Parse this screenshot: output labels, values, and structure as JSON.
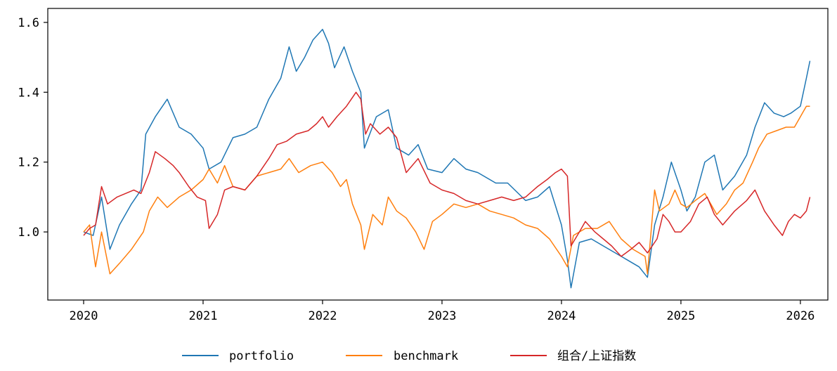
{
  "chart_data": {
    "type": "line",
    "title": "",
    "xlabel": "",
    "ylabel": "",
    "xlim": [
      2019.7,
      2026.23
    ],
    "ylim": [
      0.805,
      1.64
    ],
    "x_ticks": [
      2020,
      2021,
      2022,
      2023,
      2024,
      2025,
      2026
    ],
    "x_tick_labels": [
      "2020",
      "2021",
      "2022",
      "2023",
      "2024",
      "2025",
      "2026"
    ],
    "y_ticks": [
      1.0,
      1.2,
      1.4,
      1.6
    ],
    "y_tick_labels": [
      "1.0",
      "1.2",
      "1.4",
      "1.6"
    ],
    "grid": false,
    "legend_position": "bottom-center",
    "series": [
      {
        "name": "portfolio",
        "color": "#1f77b4",
        "points": [
          [
            2020.0,
            1.0
          ],
          [
            2020.08,
            0.99
          ],
          [
            2020.15,
            1.1
          ],
          [
            2020.22,
            0.95
          ],
          [
            2020.3,
            1.02
          ],
          [
            2020.4,
            1.08
          ],
          [
            2020.48,
            1.12
          ],
          [
            2020.52,
            1.28
          ],
          [
            2020.6,
            1.33
          ],
          [
            2020.7,
            1.38
          ],
          [
            2020.8,
            1.3
          ],
          [
            2020.9,
            1.28
          ],
          [
            2021.0,
            1.24
          ],
          [
            2021.05,
            1.18
          ],
          [
            2021.15,
            1.2
          ],
          [
            2021.25,
            1.27
          ],
          [
            2021.35,
            1.28
          ],
          [
            2021.45,
            1.3
          ],
          [
            2021.55,
            1.38
          ],
          [
            2021.65,
            1.44
          ],
          [
            2021.72,
            1.53
          ],
          [
            2021.78,
            1.46
          ],
          [
            2021.85,
            1.5
          ],
          [
            2021.92,
            1.55
          ],
          [
            2022.0,
            1.58
          ],
          [
            2022.05,
            1.54
          ],
          [
            2022.1,
            1.47
          ],
          [
            2022.18,
            1.53
          ],
          [
            2022.25,
            1.46
          ],
          [
            2022.32,
            1.4
          ],
          [
            2022.35,
            1.24
          ],
          [
            2022.45,
            1.33
          ],
          [
            2022.55,
            1.35
          ],
          [
            2022.62,
            1.24
          ],
          [
            2022.72,
            1.22
          ],
          [
            2022.8,
            1.25
          ],
          [
            2022.88,
            1.18
          ],
          [
            2023.0,
            1.17
          ],
          [
            2023.1,
            1.21
          ],
          [
            2023.2,
            1.18
          ],
          [
            2023.3,
            1.17
          ],
          [
            2023.45,
            1.14
          ],
          [
            2023.55,
            1.14
          ],
          [
            2023.7,
            1.09
          ],
          [
            2023.8,
            1.1
          ],
          [
            2023.9,
            1.13
          ],
          [
            2024.0,
            1.02
          ],
          [
            2024.05,
            0.92
          ],
          [
            2024.08,
            0.84
          ],
          [
            2024.15,
            0.97
          ],
          [
            2024.25,
            0.98
          ],
          [
            2024.35,
            0.96
          ],
          [
            2024.45,
            0.94
          ],
          [
            2024.55,
            0.92
          ],
          [
            2024.65,
            0.9
          ],
          [
            2024.72,
            0.87
          ],
          [
            2024.78,
            1.02
          ],
          [
            2024.85,
            1.1
          ],
          [
            2024.92,
            1.2
          ],
          [
            2025.0,
            1.12
          ],
          [
            2025.05,
            1.06
          ],
          [
            2025.12,
            1.1
          ],
          [
            2025.2,
            1.2
          ],
          [
            2025.28,
            1.22
          ],
          [
            2025.35,
            1.12
          ],
          [
            2025.45,
            1.16
          ],
          [
            2025.55,
            1.22
          ],
          [
            2025.62,
            1.3
          ],
          [
            2025.7,
            1.37
          ],
          [
            2025.78,
            1.34
          ],
          [
            2025.86,
            1.33
          ],
          [
            2025.92,
            1.34
          ],
          [
            2026.0,
            1.36
          ],
          [
            2026.05,
            1.44
          ],
          [
            2026.08,
            1.49
          ]
        ]
      },
      {
        "name": "benchmark",
        "color": "#ff7f0e",
        "points": [
          [
            2020.0,
            1.0
          ],
          [
            2020.05,
            1.02
          ],
          [
            2020.1,
            0.9
          ],
          [
            2020.15,
            1.0
          ],
          [
            2020.22,
            0.88
          ],
          [
            2020.3,
            0.91
          ],
          [
            2020.4,
            0.95
          ],
          [
            2020.5,
            1.0
          ],
          [
            2020.55,
            1.06
          ],
          [
            2020.62,
            1.1
          ],
          [
            2020.7,
            1.07
          ],
          [
            2020.8,
            1.1
          ],
          [
            2020.9,
            1.12
          ],
          [
            2021.0,
            1.15
          ],
          [
            2021.05,
            1.18
          ],
          [
            2021.12,
            1.14
          ],
          [
            2021.18,
            1.19
          ],
          [
            2021.25,
            1.13
          ],
          [
            2021.35,
            1.12
          ],
          [
            2021.45,
            1.16
          ],
          [
            2021.55,
            1.17
          ],
          [
            2021.65,
            1.18
          ],
          [
            2021.72,
            1.21
          ],
          [
            2021.8,
            1.17
          ],
          [
            2021.9,
            1.19
          ],
          [
            2022.0,
            1.2
          ],
          [
            2022.08,
            1.17
          ],
          [
            2022.15,
            1.13
          ],
          [
            2022.2,
            1.15
          ],
          [
            2022.25,
            1.08
          ],
          [
            2022.32,
            1.02
          ],
          [
            2022.35,
            0.95
          ],
          [
            2022.42,
            1.05
          ],
          [
            2022.5,
            1.02
          ],
          [
            2022.55,
            1.1
          ],
          [
            2022.62,
            1.06
          ],
          [
            2022.7,
            1.04
          ],
          [
            2022.78,
            1.0
          ],
          [
            2022.85,
            0.95
          ],
          [
            2022.92,
            1.03
          ],
          [
            2023.0,
            1.05
          ],
          [
            2023.1,
            1.08
          ],
          [
            2023.2,
            1.07
          ],
          [
            2023.3,
            1.08
          ],
          [
            2023.4,
            1.06
          ],
          [
            2023.5,
            1.05
          ],
          [
            2023.6,
            1.04
          ],
          [
            2023.7,
            1.02
          ],
          [
            2023.8,
            1.01
          ],
          [
            2023.9,
            0.98
          ],
          [
            2024.0,
            0.93
          ],
          [
            2024.05,
            0.9
          ],
          [
            2024.1,
            0.99
          ],
          [
            2024.2,
            1.01
          ],
          [
            2024.3,
            1.01
          ],
          [
            2024.4,
            1.03
          ],
          [
            2024.5,
            0.98
          ],
          [
            2024.6,
            0.95
          ],
          [
            2024.7,
            0.93
          ],
          [
            2024.72,
            0.88
          ],
          [
            2024.78,
            1.12
          ],
          [
            2024.82,
            1.06
          ],
          [
            2024.9,
            1.08
          ],
          [
            2024.95,
            1.12
          ],
          [
            2025.0,
            1.08
          ],
          [
            2025.05,
            1.07
          ],
          [
            2025.12,
            1.09
          ],
          [
            2025.2,
            1.11
          ],
          [
            2025.3,
            1.05
          ],
          [
            2025.38,
            1.08
          ],
          [
            2025.45,
            1.12
          ],
          [
            2025.52,
            1.14
          ],
          [
            2025.6,
            1.2
          ],
          [
            2025.65,
            1.24
          ],
          [
            2025.72,
            1.28
          ],
          [
            2025.8,
            1.29
          ],
          [
            2025.88,
            1.3
          ],
          [
            2025.95,
            1.3
          ],
          [
            2026.0,
            1.33
          ],
          [
            2026.05,
            1.36
          ],
          [
            2026.08,
            1.36
          ]
        ]
      },
      {
        "name": "组合/上证指数",
        "color": "#d62728",
        "points": [
          [
            2020.0,
            0.99
          ],
          [
            2020.05,
            1.01
          ],
          [
            2020.1,
            1.02
          ],
          [
            2020.15,
            1.13
          ],
          [
            2020.2,
            1.08
          ],
          [
            2020.28,
            1.1
          ],
          [
            2020.35,
            1.11
          ],
          [
            2020.42,
            1.12
          ],
          [
            2020.48,
            1.11
          ],
          [
            2020.55,
            1.17
          ],
          [
            2020.6,
            1.23
          ],
          [
            2020.68,
            1.21
          ],
          [
            2020.75,
            1.19
          ],
          [
            2020.8,
            1.17
          ],
          [
            2020.88,
            1.13
          ],
          [
            2020.95,
            1.1
          ],
          [
            2021.02,
            1.09
          ],
          [
            2021.05,
            1.01
          ],
          [
            2021.12,
            1.05
          ],
          [
            2021.18,
            1.12
          ],
          [
            2021.25,
            1.13
          ],
          [
            2021.35,
            1.12
          ],
          [
            2021.45,
            1.16
          ],
          [
            2021.55,
            1.21
          ],
          [
            2021.62,
            1.25
          ],
          [
            2021.7,
            1.26
          ],
          [
            2021.78,
            1.28
          ],
          [
            2021.88,
            1.29
          ],
          [
            2021.95,
            1.31
          ],
          [
            2022.0,
            1.33
          ],
          [
            2022.05,
            1.3
          ],
          [
            2022.12,
            1.33
          ],
          [
            2022.2,
            1.36
          ],
          [
            2022.28,
            1.4
          ],
          [
            2022.32,
            1.38
          ],
          [
            2022.36,
            1.28
          ],
          [
            2022.4,
            1.31
          ],
          [
            2022.48,
            1.28
          ],
          [
            2022.55,
            1.3
          ],
          [
            2022.62,
            1.27
          ],
          [
            2022.7,
            1.17
          ],
          [
            2022.8,
            1.21
          ],
          [
            2022.9,
            1.14
          ],
          [
            2023.0,
            1.12
          ],
          [
            2023.1,
            1.11
          ],
          [
            2023.2,
            1.09
          ],
          [
            2023.3,
            1.08
          ],
          [
            2023.4,
            1.09
          ],
          [
            2023.5,
            1.1
          ],
          [
            2023.6,
            1.09
          ],
          [
            2023.7,
            1.1
          ],
          [
            2023.8,
            1.13
          ],
          [
            2023.88,
            1.15
          ],
          [
            2023.95,
            1.17
          ],
          [
            2024.0,
            1.18
          ],
          [
            2024.05,
            1.16
          ],
          [
            2024.08,
            0.96
          ],
          [
            2024.15,
            1.0
          ],
          [
            2024.2,
            1.03
          ],
          [
            2024.28,
            1.0
          ],
          [
            2024.35,
            0.98
          ],
          [
            2024.42,
            0.96
          ],
          [
            2024.5,
            0.93
          ],
          [
            2024.58,
            0.95
          ],
          [
            2024.65,
            0.97
          ],
          [
            2024.72,
            0.94
          ],
          [
            2024.8,
            0.98
          ],
          [
            2024.85,
            1.05
          ],
          [
            2024.9,
            1.03
          ],
          [
            2024.95,
            1.0
          ],
          [
            2025.0,
            1.0
          ],
          [
            2025.08,
            1.03
          ],
          [
            2025.15,
            1.08
          ],
          [
            2025.22,
            1.1
          ],
          [
            2025.28,
            1.05
          ],
          [
            2025.35,
            1.02
          ],
          [
            2025.45,
            1.06
          ],
          [
            2025.55,
            1.09
          ],
          [
            2025.62,
            1.12
          ],
          [
            2025.7,
            1.06
          ],
          [
            2025.78,
            1.02
          ],
          [
            2025.85,
            0.99
          ],
          [
            2025.9,
            1.03
          ],
          [
            2025.95,
            1.05
          ],
          [
            2026.0,
            1.04
          ],
          [
            2026.05,
            1.06
          ],
          [
            2026.08,
            1.1
          ]
        ]
      }
    ]
  }
}
